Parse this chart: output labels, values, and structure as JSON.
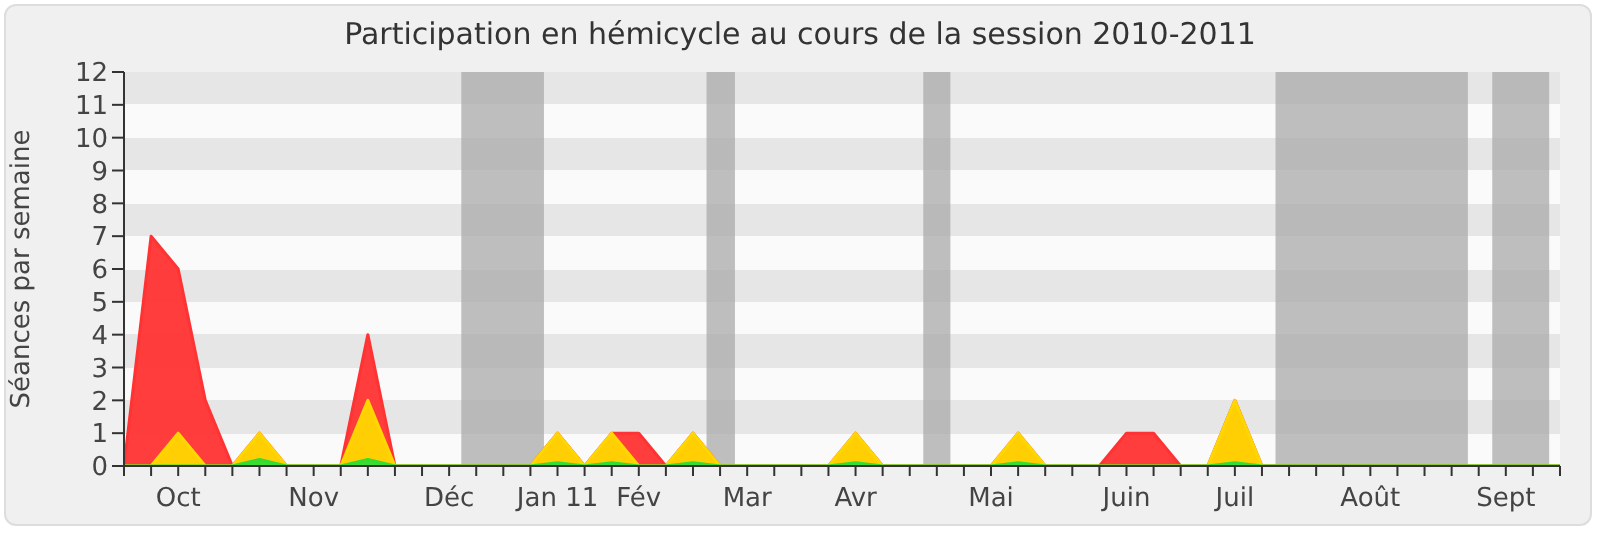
{
  "chart_data": {
    "type": "area",
    "title": "Participation en hémicycle au cours de la session 2010-2011",
    "ylabel": "Séances par semaine",
    "categories": [
      null,
      null,
      "Oct",
      null,
      null,
      null,
      null,
      "Nov",
      null,
      null,
      null,
      null,
      "Déc",
      null,
      null,
      null,
      "Jan 11",
      null,
      null,
      "Fév",
      null,
      null,
      null,
      "Mar",
      null,
      null,
      null,
      "Avr",
      null,
      null,
      null,
      null,
      "Mai",
      null,
      null,
      null,
      null,
      "Juin",
      null,
      null,
      null,
      "Juil",
      null,
      null,
      null,
      null,
      "Août",
      null,
      null,
      null,
      null,
      "Sept",
      null,
      null
    ],
    "series": [
      {
        "color": "#ff3333",
        "values": [
          0,
          7,
          6,
          2,
          0,
          1,
          0,
          0,
          0,
          4,
          0,
          0,
          0,
          0,
          0,
          0,
          1,
          0,
          1,
          1,
          0,
          1,
          0,
          0,
          0,
          0,
          0,
          1,
          0,
          0,
          0,
          0,
          0,
          1,
          0,
          0,
          0,
          1,
          1,
          0,
          0,
          2,
          0,
          0,
          0,
          0,
          0,
          0,
          0,
          0,
          0,
          0,
          0,
          0
        ]
      },
      {
        "color": "#ffd700",
        "values": [
          0,
          0,
          1,
          0,
          0,
          1,
          0,
          0,
          0,
          2,
          0,
          0,
          0,
          0,
          0,
          0,
          1,
          0,
          1,
          0,
          0,
          1,
          0,
          0,
          0,
          0,
          0,
          1,
          0,
          0,
          0,
          0,
          0,
          1,
          0,
          0,
          0,
          0,
          0,
          0,
          0,
          2,
          0,
          0,
          0,
          0,
          0,
          0,
          0,
          0,
          0,
          0,
          0,
          0
        ]
      },
      {
        "color": "#33dd33",
        "values": [
          0,
          0,
          0,
          0,
          0,
          0.2,
          0,
          0,
          0,
          0.2,
          0,
          0,
          0,
          0,
          0,
          0,
          0.1,
          0,
          0.1,
          0,
          0,
          0.1,
          0,
          0,
          0,
          0,
          0,
          0.1,
          0,
          0,
          0,
          0,
          0,
          0.1,
          0,
          0,
          0,
          0,
          0,
          0,
          0,
          0.1,
          0,
          0,
          0,
          0,
          0,
          0,
          0,
          0,
          0,
          0,
          0,
          0
        ]
      }
    ],
    "ylim": [
      0,
      12
    ],
    "yticks": [
      0,
      1,
      2,
      3,
      4,
      5,
      6,
      7,
      8,
      9,
      10,
      11,
      12
    ],
    "grid": false
  }
}
